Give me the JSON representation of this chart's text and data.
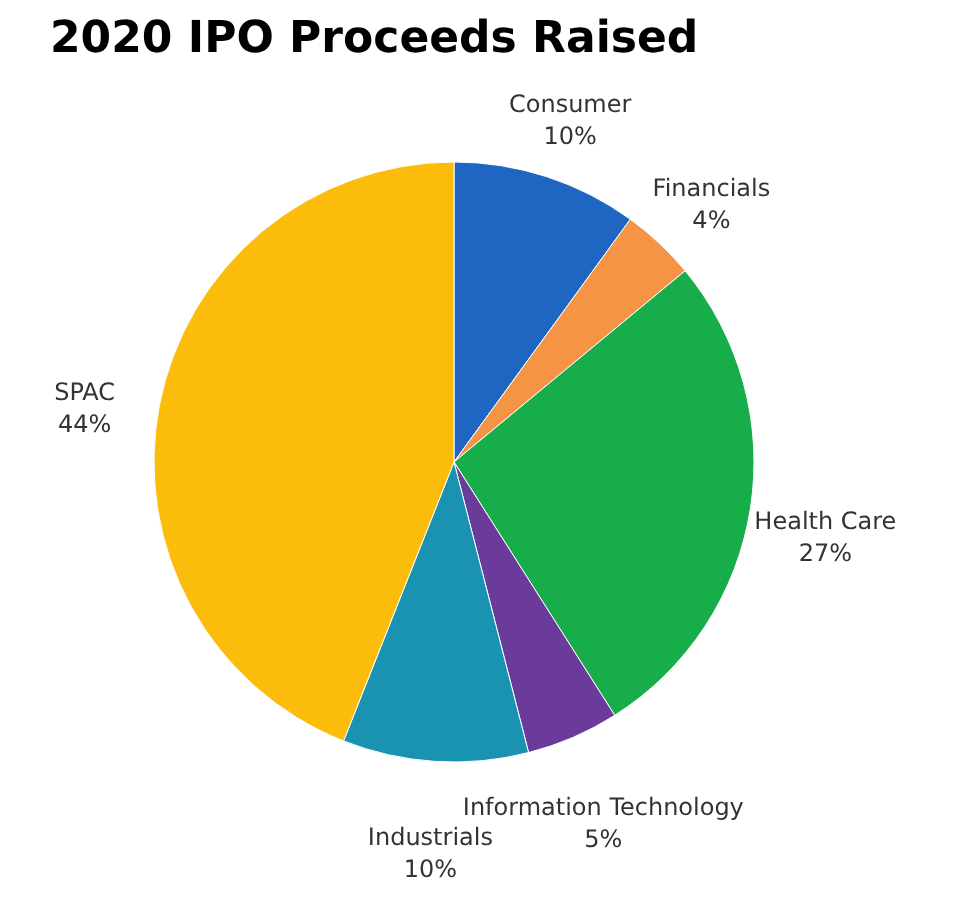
{
  "chart_data": {
    "type": "pie",
    "title": "2020 IPO Proceeds Raised",
    "categories": [
      "Consumer",
      "Financials",
      "Health Care",
      "Information Technology",
      "Industrials",
      "SPAC"
    ],
    "values": [
      10,
      4,
      27,
      5,
      10,
      44
    ],
    "value_labels": [
      "10%",
      "4%",
      "27%",
      "5%",
      "10%",
      "44%"
    ],
    "colors": [
      "#1f66c2",
      "#f59445",
      "#17ad4a",
      "#6b3b9b",
      "#1a93b3",
      "#fbbc0b"
    ],
    "legend": false
  }
}
